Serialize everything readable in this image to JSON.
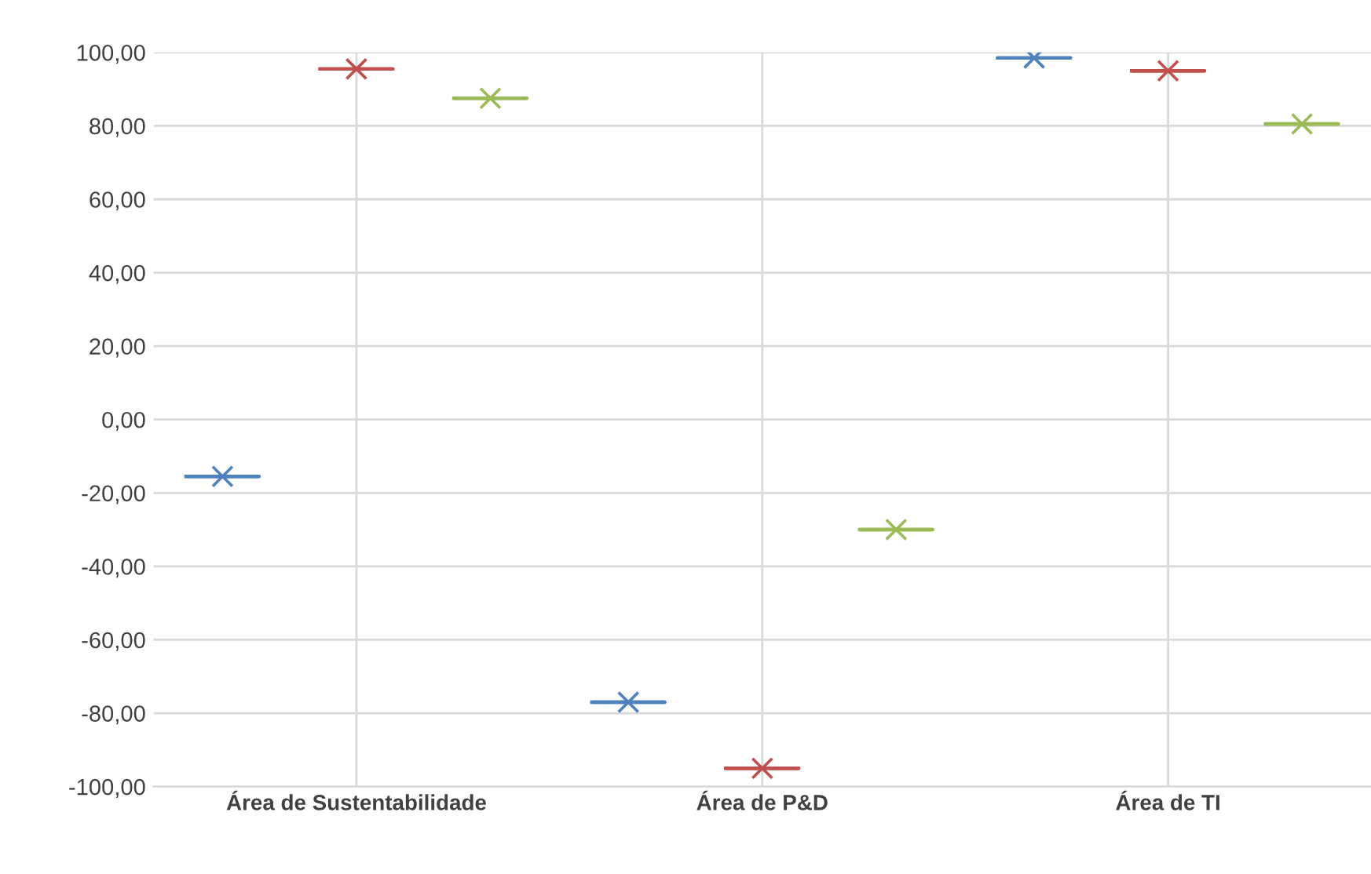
{
  "chart_data": {
    "type": "box",
    "categories": [
      "Área de Sustentabilidade",
      "Área de P&D",
      "Área de TI"
    ],
    "series": [
      {
        "color": "#4f81bd",
        "boxes": [
          {
            "low": -15.5,
            "q1": -15.5,
            "median": -15.5,
            "q3": -15.5,
            "high": -15.5,
            "mean": -15.5
          },
          {
            "low": -77,
            "q1": -77,
            "median": -77,
            "q3": -77,
            "high": -77,
            "mean": -77
          },
          {
            "low": 98.5,
            "q1": 98.5,
            "median": 98.5,
            "q3": 98.5,
            "high": 98.5,
            "mean": 98.5
          }
        ]
      },
      {
        "color": "#c0504d",
        "boxes": [
          {
            "low": 95.5,
            "q1": 95.5,
            "median": 95.5,
            "q3": 95.5,
            "high": 95.5,
            "mean": 95.5
          },
          {
            "low": -95,
            "q1": -95,
            "median": -95,
            "q3": -95,
            "high": -95,
            "mean": -95
          },
          {
            "low": 95,
            "q1": 95,
            "median": 95,
            "q3": 95,
            "high": 95,
            "mean": 95
          }
        ]
      },
      {
        "color": "#9bbb59",
        "boxes": [
          {
            "low": 87.5,
            "q1": 87.5,
            "median": 87.5,
            "q3": 87.5,
            "high": 87.5,
            "mean": 87.5
          },
          {
            "low": -30,
            "q1": -30,
            "median": -30,
            "q3": -30,
            "high": -30,
            "mean": -30
          },
          {
            "low": 80.5,
            "q1": 80.5,
            "median": 80.5,
            "q3": 80.5,
            "high": 80.5,
            "mean": 80.5
          }
        ]
      }
    ],
    "ylim": [
      -100,
      100
    ],
    "yticks": [
      {
        "value": -100,
        "label": "-100,00"
      },
      {
        "value": -80,
        "label": "-80,00"
      },
      {
        "value": -60,
        "label": "-60,00"
      },
      {
        "value": -40,
        "label": "-40,00"
      },
      {
        "value": -20,
        "label": "-20,00"
      },
      {
        "value": 0,
        "label": "0,00"
      },
      {
        "value": 20,
        "label": "20,00"
      },
      {
        "value": 40,
        "label": "40,00"
      },
      {
        "value": 60,
        "label": "60,00"
      },
      {
        "value": 80,
        "label": "80,00"
      },
      {
        "value": 100,
        "label": "100,00"
      }
    ],
    "grid": true,
    "marker": "cross"
  }
}
